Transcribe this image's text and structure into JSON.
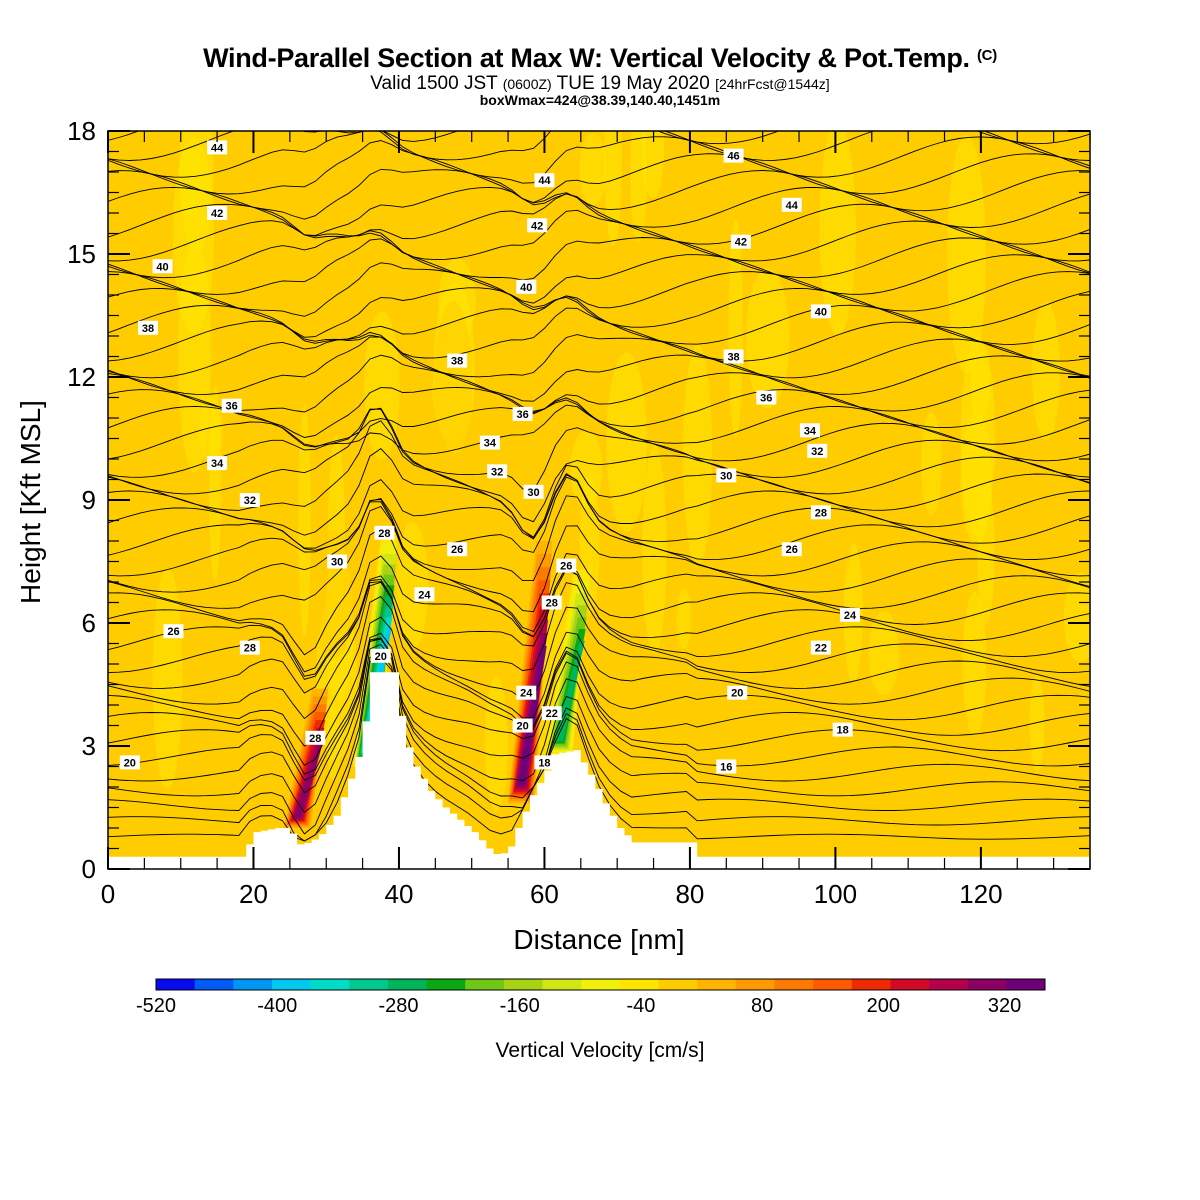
{
  "title": {
    "main": "Wind-Parallel Section at Max W: Vertical Velocity & Pot.Temp.",
    "copyright": "(C)",
    "valid_prefix": "Valid 1500 JST",
    "valid_utc": "(0600Z)",
    "valid_date": "TUE 19 May 2020",
    "forecast": "[24hrFcst@1544z]",
    "box": "boxWmax=424@38.39,140.40,1451m"
  },
  "chart_data": {
    "type": "heatmap",
    "xlabel": "Distance [nm]",
    "ylabel": "Height [Kft MSL]",
    "xlim": [
      0,
      135
    ],
    "ylim": [
      0,
      18
    ],
    "x_ticks": [
      0,
      20,
      40,
      60,
      80,
      100,
      120
    ],
    "y_ticks": [
      0,
      3,
      6,
      9,
      12,
      15,
      18
    ],
    "grid": false,
    "colorbar": {
      "title": "Vertical Velocity [cm/s]",
      "tick_labels": [
        "-520",
        "-400",
        "-280",
        "-160",
        "-40",
        "80",
        "200",
        "320"
      ],
      "tick_values": [
        -520,
        -400,
        -280,
        -160,
        -40,
        80,
        200,
        320
      ],
      "range": [
        -520,
        360
      ],
      "step": 40,
      "colors": [
        "#0a0af0",
        "#005af5",
        "#0096f5",
        "#00c8f0",
        "#00dcc8",
        "#00c88c",
        "#00b45a",
        "#0aa814",
        "#6ec814",
        "#a8d214",
        "#d2e614",
        "#f0f00a",
        "#ffe600",
        "#ffcc00",
        "#ffb400",
        "#ff9a00",
        "#ff7a00",
        "#ff5a00",
        "#f02a00",
        "#d20a28",
        "#b4004b",
        "#8c0064",
        "#6e0078"
      ]
    },
    "background_w_cm_s": 20,
    "terrain_kft": [
      [
        0,
        0.3
      ],
      [
        18,
        0.3
      ],
      [
        20,
        0.9
      ],
      [
        23,
        1.0
      ],
      [
        24.5,
        1.0
      ],
      [
        26,
        0.6
      ],
      [
        27.5,
        0.65
      ],
      [
        29,
        0.85
      ],
      [
        31,
        1.3
      ],
      [
        33,
        2.2
      ],
      [
        34.5,
        3.0
      ],
      [
        36,
        4.8
      ],
      [
        39,
        4.8
      ],
      [
        40.5,
        3.2
      ],
      [
        42,
        2.5
      ],
      [
        44,
        1.9
      ],
      [
        46,
        1.5
      ],
      [
        48,
        1.2
      ],
      [
        50,
        0.9
      ],
      [
        52,
        0.5
      ],
      [
        53.5,
        0.3
      ],
      [
        55,
        0.55
      ],
      [
        56,
        1.0
      ],
      [
        58,
        1.8
      ],
      [
        60,
        2.4
      ],
      [
        61,
        2.8
      ],
      [
        64,
        2.9
      ],
      [
        66,
        2.3
      ],
      [
        68,
        1.6
      ],
      [
        70,
        1.0
      ],
      [
        72,
        0.65
      ],
      [
        76,
        0.65
      ],
      [
        80,
        0.65
      ],
      [
        81,
        0.3
      ],
      [
        135,
        0.3
      ]
    ],
    "w_features_cm_s": [
      {
        "kind": "updraft",
        "x": 26.0,
        "height_range_kft": [
          1.0,
          4.4
        ],
        "peak": 320
      },
      {
        "kind": "downdraft",
        "x": 35.5,
        "height_range_kft": [
          2.5,
          8.2
        ],
        "peak": -400
      },
      {
        "kind": "updraft",
        "x": 56.8,
        "height_range_kft": [
          1.6,
          8.0
        ],
        "peak": 360
      },
      {
        "kind": "downdraft",
        "x": 62.0,
        "height_range_kft": [
          2.8,
          7.3
        ],
        "peak": -280
      }
    ],
    "theta_contours": {
      "interval": 1,
      "labels": [
        {
          "x": 15,
          "y": 17.6,
          "text": "44"
        },
        {
          "x": 86,
          "y": 17.4,
          "text": "46"
        },
        {
          "x": 60,
          "y": 16.8,
          "text": "44"
        },
        {
          "x": 94,
          "y": 16.2,
          "text": "44"
        },
        {
          "x": 15,
          "y": 16.0,
          "text": "42"
        },
        {
          "x": 59,
          "y": 15.7,
          "text": "42"
        },
        {
          "x": 87,
          "y": 15.3,
          "text": "42"
        },
        {
          "x": 7.5,
          "y": 14.7,
          "text": "40"
        },
        {
          "x": 57.5,
          "y": 14.2,
          "text": "40"
        },
        {
          "x": 98,
          "y": 13.6,
          "text": "40"
        },
        {
          "x": 5.5,
          "y": 13.2,
          "text": "38"
        },
        {
          "x": 48,
          "y": 12.4,
          "text": "38"
        },
        {
          "x": 86,
          "y": 12.5,
          "text": "38"
        },
        {
          "x": 90.5,
          "y": 11.5,
          "text": "36"
        },
        {
          "x": 17,
          "y": 11.3,
          "text": "36"
        },
        {
          "x": 57,
          "y": 11.1,
          "text": "36"
        },
        {
          "x": 96.5,
          "y": 10.7,
          "text": "34"
        },
        {
          "x": 97.5,
          "y": 10.2,
          "text": "32"
        },
        {
          "x": 52.5,
          "y": 10.4,
          "text": "34"
        },
        {
          "x": 15,
          "y": 9.9,
          "text": "34"
        },
        {
          "x": 53.5,
          "y": 9.7,
          "text": "32"
        },
        {
          "x": 85,
          "y": 9.6,
          "text": "30"
        },
        {
          "x": 58.5,
          "y": 9.2,
          "text": "30"
        },
        {
          "x": 19.5,
          "y": 9.0,
          "text": "32"
        },
        {
          "x": 98,
          "y": 8.7,
          "text": "28"
        },
        {
          "x": 38,
          "y": 8.2,
          "text": "28"
        },
        {
          "x": 48,
          "y": 7.8,
          "text": "26"
        },
        {
          "x": 94,
          "y": 7.8,
          "text": "26"
        },
        {
          "x": 63,
          "y": 7.4,
          "text": "26"
        },
        {
          "x": 31.5,
          "y": 7.5,
          "text": "30"
        },
        {
          "x": 43.5,
          "y": 6.7,
          "text": "24"
        },
        {
          "x": 61,
          "y": 6.5,
          "text": "28"
        },
        {
          "x": 102,
          "y": 6.2,
          "text": "24"
        },
        {
          "x": 9,
          "y": 5.8,
          "text": "26"
        },
        {
          "x": 19.5,
          "y": 5.4,
          "text": "28"
        },
        {
          "x": 98,
          "y": 5.4,
          "text": "22"
        },
        {
          "x": 37.5,
          "y": 5.2,
          "text": "20"
        },
        {
          "x": 86.5,
          "y": 4.3,
          "text": "20"
        },
        {
          "x": 57.5,
          "y": 4.3,
          "text": "24"
        },
        {
          "x": 61,
          "y": 3.8,
          "text": "22"
        },
        {
          "x": 57,
          "y": 3.5,
          "text": "20"
        },
        {
          "x": 101,
          "y": 3.4,
          "text": "18"
        },
        {
          "x": 28.5,
          "y": 3.2,
          "text": "28"
        },
        {
          "x": 3,
          "y": 2.6,
          "text": "20"
        },
        {
          "x": 60,
          "y": 2.6,
          "text": "18"
        },
        {
          "x": 85,
          "y": 2.5,
          "text": "16"
        }
      ]
    }
  }
}
